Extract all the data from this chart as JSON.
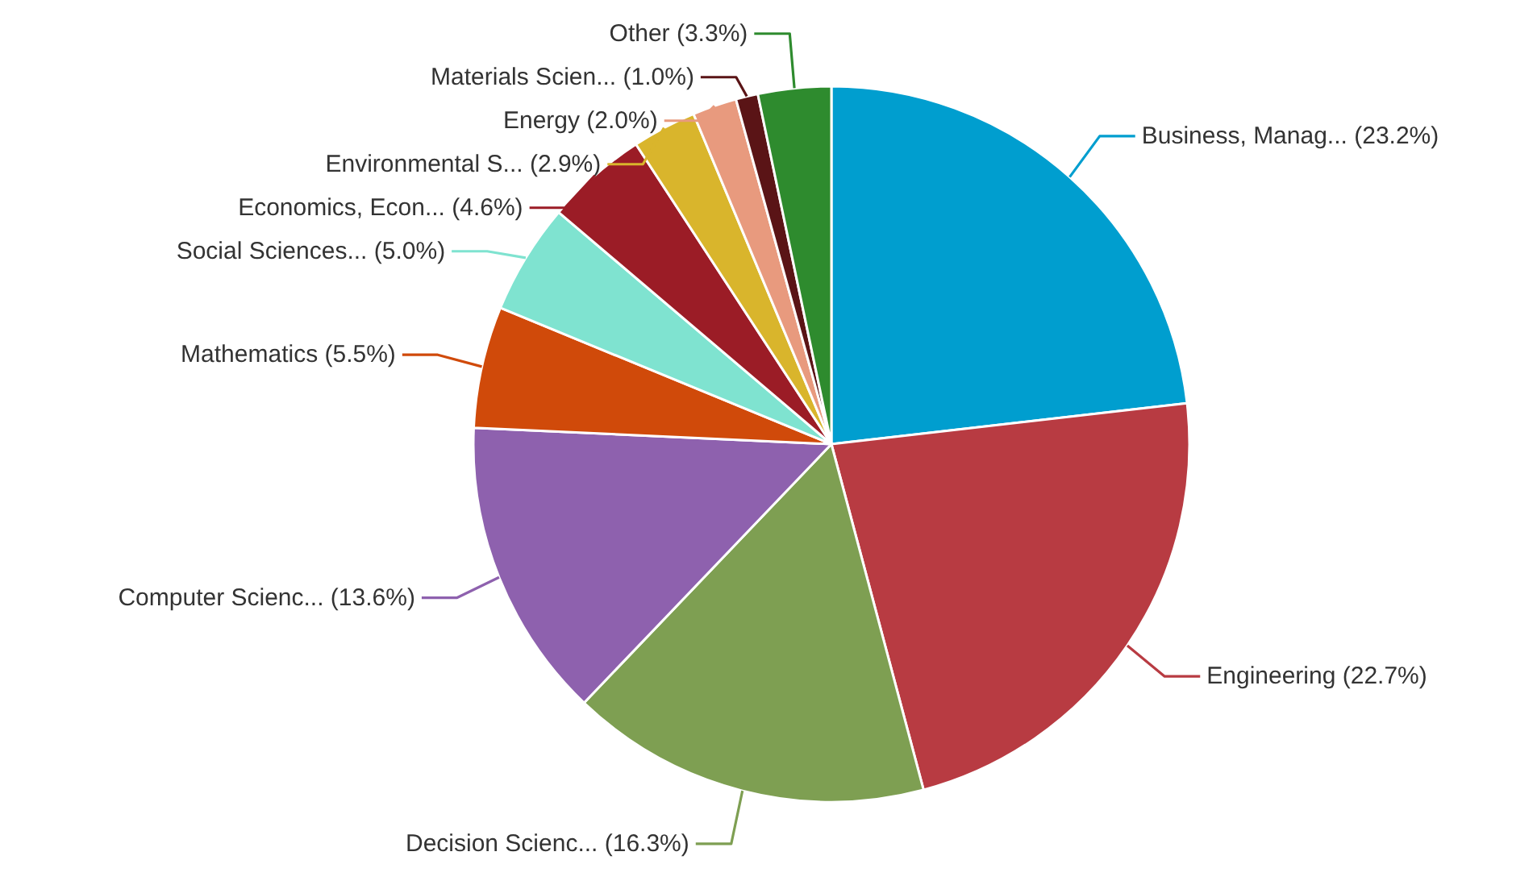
{
  "chart_data": {
    "type": "pie",
    "categories": [
      "Business, Manag...",
      "Engineering",
      "Decision Scienc...",
      "Computer Scienc...",
      "Mathematics",
      "Social Sciences...",
      "Economics, Econ...",
      "Environmental S...",
      "Energy",
      "Materials Scien...",
      "Other"
    ],
    "values": [
      23.2,
      22.7,
      16.3,
      13.6,
      5.5,
      5.0,
      4.6,
      2.9,
      2.0,
      1.0,
      3.3
    ],
    "colors": [
      "#009ecf",
      "#b83b42",
      "#7e9f52",
      "#8e61ae",
      "#d04a0a",
      "#7fe3d0",
      "#9b1c26",
      "#d9b52c",
      "#e89a7e",
      "#5a1416",
      "#2e8b2e"
    ],
    "value_labels": [
      "(23.2%)",
      "(22.7%)",
      "(16.3%)",
      "(13.6%)",
      "(5.5%)",
      "(5.0%)",
      "(4.6%)",
      "(2.9%)",
      "(2.0%)",
      "(1.0%)",
      "(3.3%)"
    ]
  }
}
